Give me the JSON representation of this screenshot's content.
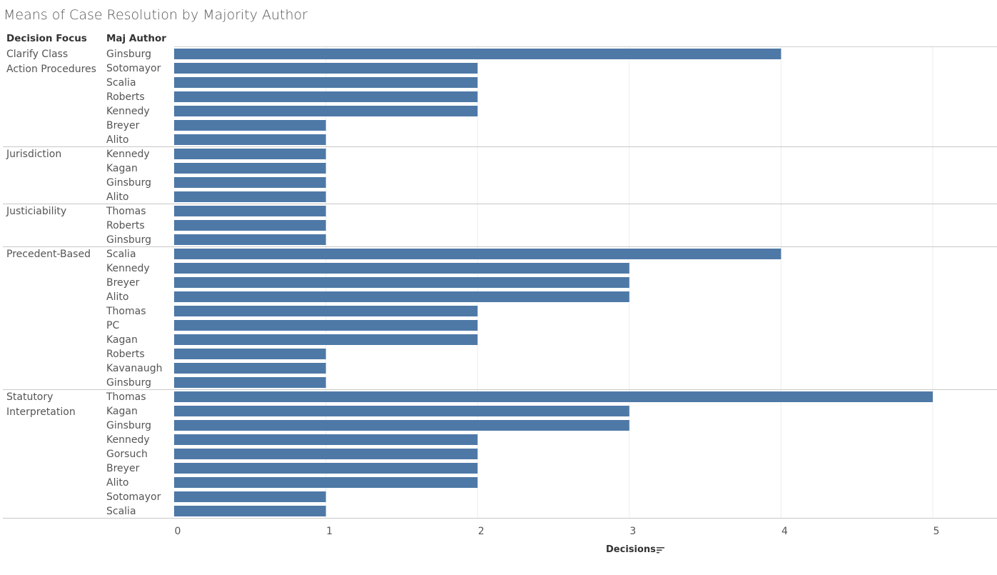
{
  "title": "Means of Case Resolution by Majority Author",
  "headers": {
    "group": "Decision Focus",
    "author": "Maj Author"
  },
  "chart_data": {
    "type": "bar",
    "orientation": "horizontal",
    "xlabel": "Decisions",
    "xlim": [
      0,
      5.4
    ],
    "xticks": [
      0,
      1,
      2,
      3,
      4,
      5
    ],
    "bar_color": "#4e79a7",
    "grid": true,
    "groups": [
      {
        "name": "Clarify Class\nAction Procedures",
        "rows": [
          {
            "author": "Ginsburg",
            "value": 4
          },
          {
            "author": "Sotomayor",
            "value": 2
          },
          {
            "author": "Scalia",
            "value": 2
          },
          {
            "author": "Roberts",
            "value": 2
          },
          {
            "author": "Kennedy",
            "value": 2
          },
          {
            "author": "Breyer",
            "value": 1
          },
          {
            "author": "Alito",
            "value": 1
          }
        ]
      },
      {
        "name": "Jurisdiction",
        "rows": [
          {
            "author": "Kennedy",
            "value": 1
          },
          {
            "author": "Kagan",
            "value": 1
          },
          {
            "author": "Ginsburg",
            "value": 1
          },
          {
            "author": "Alito",
            "value": 1
          }
        ]
      },
      {
        "name": "Justiciability",
        "rows": [
          {
            "author": "Thomas",
            "value": 1
          },
          {
            "author": "Roberts",
            "value": 1
          },
          {
            "author": "Ginsburg",
            "value": 1
          }
        ]
      },
      {
        "name": "Precedent-Based",
        "rows": [
          {
            "author": "Scalia",
            "value": 4
          },
          {
            "author": "Kennedy",
            "value": 3
          },
          {
            "author": "Breyer",
            "value": 3
          },
          {
            "author": "Alito",
            "value": 3
          },
          {
            "author": "Thomas",
            "value": 2
          },
          {
            "author": "PC",
            "value": 2
          },
          {
            "author": "Kagan",
            "value": 2
          },
          {
            "author": "Roberts",
            "value": 1
          },
          {
            "author": "Kavanaugh",
            "value": 1
          },
          {
            "author": "Ginsburg",
            "value": 1
          }
        ]
      },
      {
        "name": "Statutory\nInterpretation",
        "rows": [
          {
            "author": "Thomas",
            "value": 5
          },
          {
            "author": "Kagan",
            "value": 3
          },
          {
            "author": "Ginsburg",
            "value": 3
          },
          {
            "author": "Kennedy",
            "value": 2
          },
          {
            "author": "Gorsuch",
            "value": 2
          },
          {
            "author": "Breyer",
            "value": 2
          },
          {
            "author": "Alito",
            "value": 2
          },
          {
            "author": "Sotomayor",
            "value": 1
          },
          {
            "author": "Scalia",
            "value": 1
          }
        ]
      }
    ]
  },
  "icons": {
    "sort": "sort-descending-icon"
  }
}
